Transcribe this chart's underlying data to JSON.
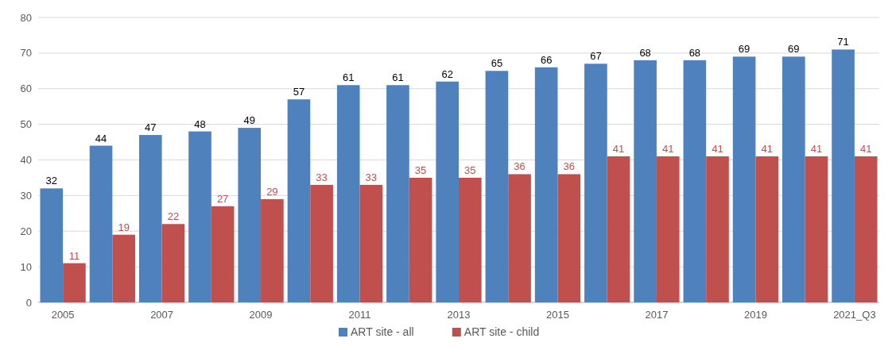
{
  "chart_data": {
    "type": "bar",
    "categories": [
      "2005",
      null,
      "2007",
      null,
      "2009",
      null,
      "2011",
      null,
      "2013",
      null,
      "2015",
      null,
      "2017",
      null,
      "2019",
      null,
      "2021_Q3"
    ],
    "series": [
      {
        "name": "ART site - all",
        "color": "#4f81bd",
        "values": [
          32,
          44,
          47,
          48,
          49,
          57,
          61,
          61,
          62,
          65,
          66,
          67,
          68,
          68,
          69,
          69,
          71
        ]
      },
      {
        "name": "ART site - child",
        "color": "#c0504d",
        "values": [
          11,
          19,
          22,
          27,
          29,
          33,
          33,
          35,
          35,
          36,
          36,
          41,
          41,
          41,
          41,
          41,
          41
        ]
      }
    ],
    "ylim": [
      0,
      80
    ],
    "yticks": [
      0,
      10,
      20,
      30,
      40,
      50,
      60,
      70,
      80
    ],
    "grid": "y",
    "legend": "bottom",
    "data_labels": true
  }
}
